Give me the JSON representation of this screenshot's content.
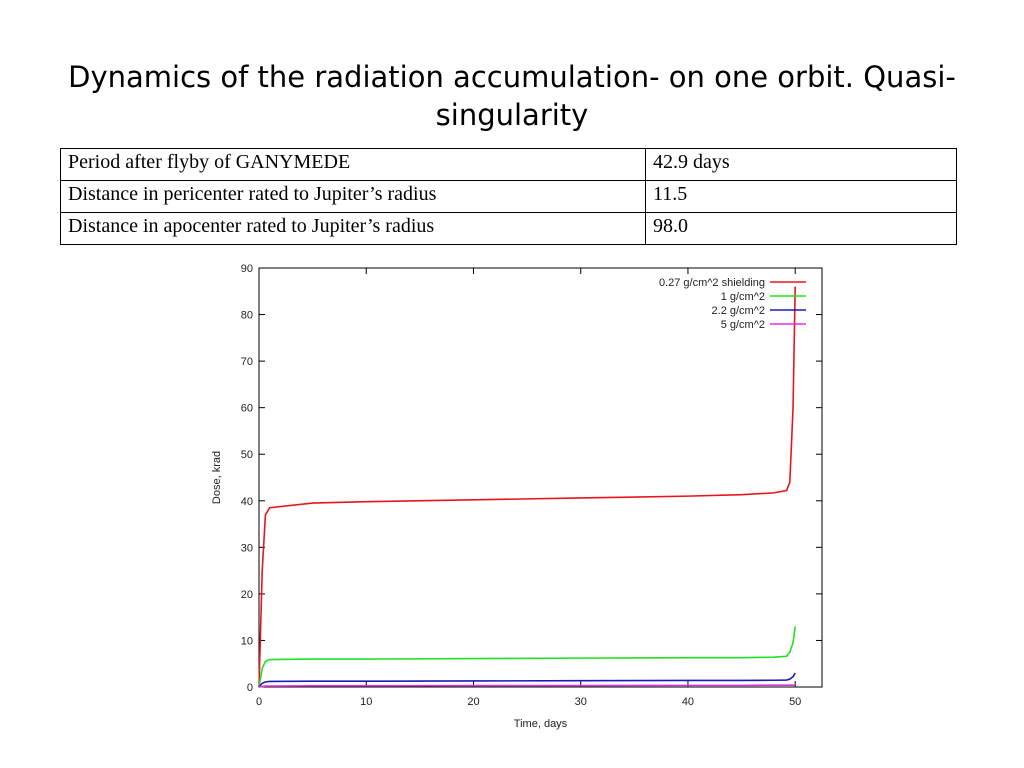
{
  "title": "Dynamics of the radiation accumulation- on one orbit. Quasi-singularity",
  "table": {
    "rows": [
      [
        "Period after flyby of GANYMEDE",
        "42.9 days"
      ],
      [
        "Distance in pericenter rated to Jupiter’s radius",
        "11.5"
      ],
      [
        "Distance in apocenter rated to Jupiter’s radius",
        "98.0"
      ]
    ]
  },
  "chart_data": {
    "type": "line",
    "x_label": "Time, days",
    "y_label": "Dose, krad",
    "x": [
      0,
      0.3,
      0.6,
      1,
      5,
      10,
      20,
      30,
      40,
      45,
      48,
      49.2,
      49.5,
      49.8,
      50
    ],
    "series": [
      {
        "name": "0.27 g/cm^2 shielding",
        "color": "#e8161b",
        "values": [
          0,
          25,
          37,
          38.5,
          39.5,
          39.8,
          40.2,
          40.6,
          41,
          41.3,
          41.7,
          42.2,
          44,
          60,
          86
        ]
      },
      {
        "name": "1 g/cm^2",
        "color": "#22e022",
        "values": [
          0,
          4,
          5.5,
          5.9,
          6,
          6,
          6.1,
          6.2,
          6.3,
          6.3,
          6.4,
          6.6,
          7.5,
          9.5,
          13
        ]
      },
      {
        "name": "2.2 g/cm^2",
        "color": "#1a1ab8",
        "values": [
          0,
          0.8,
          1.1,
          1.2,
          1.25,
          1.25,
          1.3,
          1.35,
          1.4,
          1.4,
          1.45,
          1.5,
          1.7,
          2.2,
          3
        ]
      },
      {
        "name": "5 g/cm^2",
        "color": "#e030e0",
        "values": [
          0,
          0.1,
          0.2,
          0.2,
          0.25,
          0.25,
          0.3,
          0.3,
          0.35,
          0.35,
          0.4,
          0.4,
          0.4,
          0.4,
          0.4
        ]
      }
    ],
    "xlim": [
      0,
      52.5
    ],
    "xticks": [
      0,
      10,
      20,
      30,
      40,
      50
    ],
    "ylim": [
      0,
      90
    ],
    "yticks": [
      0,
      10,
      20,
      30,
      40,
      50,
      60,
      70,
      80,
      90
    ],
    "legend": "upper right"
  }
}
